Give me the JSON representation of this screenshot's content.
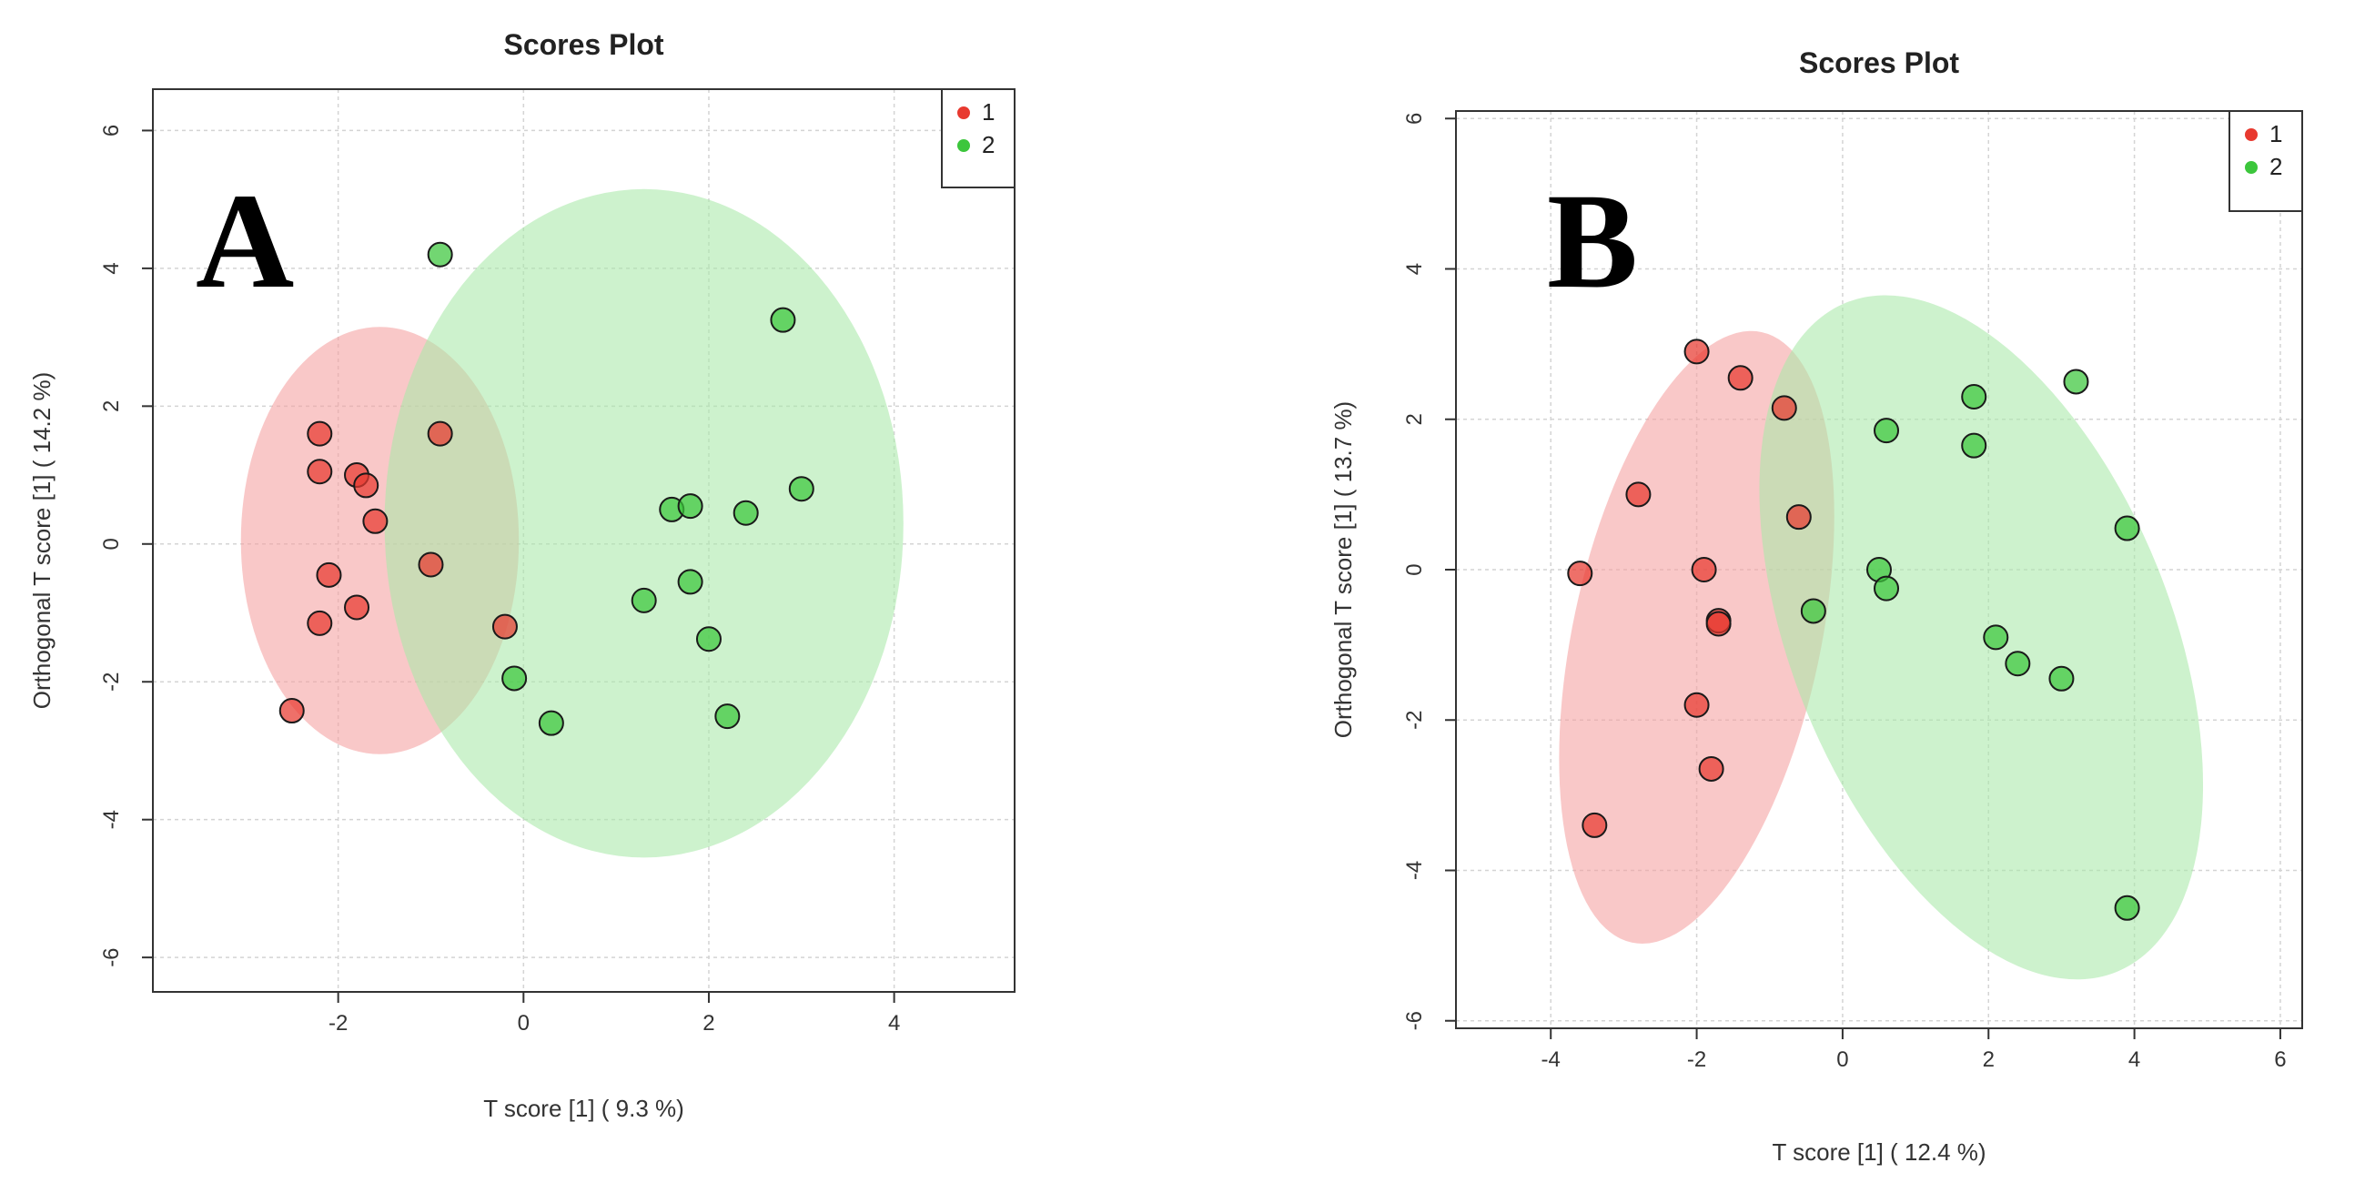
{
  "chart_data": [
    {
      "type": "scatter",
      "panel_label": "A",
      "title": "Scores Plot",
      "xlabel": "T score [1] ( 9.3 %)",
      "ylabel": "Orthogonal T score [1] ( 14.2 %)",
      "xlim": [
        -4.0,
        5.3
      ],
      "ylim": [
        -6.5,
        6.6
      ],
      "xticks": [
        -2,
        0,
        2,
        4
      ],
      "yticks": [
        -6,
        -4,
        -2,
        0,
        2,
        4,
        6
      ],
      "grid": true,
      "legend": {
        "position": "top-right",
        "entries": [
          "1",
          "2"
        ]
      },
      "series": [
        {
          "name": "1",
          "color": "#e8392f",
          "ellipse_color": "#f4a0a0",
          "points": [
            [
              -2.2,
              1.6
            ],
            [
              -2.2,
              1.05
            ],
            [
              -1.8,
              1.0
            ],
            [
              -1.7,
              0.85
            ],
            [
              -1.6,
              0.33
            ],
            [
              -2.1,
              -0.45
            ],
            [
              -2.2,
              -1.15
            ],
            [
              -1.8,
              -0.92
            ],
            [
              -0.9,
              1.6
            ],
            [
              -1.0,
              -0.3
            ],
            [
              -0.2,
              -1.2
            ],
            [
              -2.5,
              -2.42
            ]
          ],
          "ellipse": {
            "cx": -1.55,
            "cy": 0.05,
            "rx": 1.5,
            "ry": 3.1
          }
        },
        {
          "name": "2",
          "color": "#3cc63c",
          "ellipse_color": "#a8e8a8",
          "points": [
            [
              -0.9,
              4.2
            ],
            [
              2.8,
              3.25
            ],
            [
              3.0,
              0.8
            ],
            [
              1.6,
              0.5
            ],
            [
              1.8,
              0.55
            ],
            [
              2.4,
              0.45
            ],
            [
              1.8,
              -0.55
            ],
            [
              1.3,
              -0.82
            ],
            [
              2.0,
              -1.38
            ],
            [
              2.2,
              -2.5
            ],
            [
              -0.1,
              -1.95
            ],
            [
              0.3,
              -2.6
            ]
          ],
          "ellipse": {
            "cx": 1.3,
            "cy": 0.3,
            "rx": 2.8,
            "ry": 4.85
          }
        }
      ]
    },
    {
      "type": "scatter",
      "panel_label": "B",
      "title": "Scores Plot",
      "xlabel": "T score [1] ( 12.4 %)",
      "ylabel": "Orthogonal T score [1] ( 13.7 %)",
      "xlim": [
        -5.3,
        6.3
      ],
      "ylim": [
        -6.1,
        6.1
      ],
      "xticks": [
        -4,
        -2,
        0,
        2,
        4,
        6
      ],
      "yticks": [
        -6,
        -4,
        -2,
        0,
        2,
        4,
        6
      ],
      "grid": true,
      "legend": {
        "position": "top-right",
        "entries": [
          "1",
          "2"
        ]
      },
      "series": [
        {
          "name": "1",
          "color": "#e8392f",
          "ellipse_color": "#f4a0a0",
          "points": [
            [
              -2.0,
              2.9
            ],
            [
              -1.4,
              2.55
            ],
            [
              -0.8,
              2.15
            ],
            [
              -2.8,
              1.0
            ],
            [
              -0.6,
              0.7
            ],
            [
              -3.6,
              -0.05
            ],
            [
              -1.9,
              0.0
            ],
            [
              -1.7,
              -0.68
            ],
            [
              -1.7,
              -0.72
            ],
            [
              -2.0,
              -1.8
            ],
            [
              -1.8,
              -2.65
            ],
            [
              -3.4,
              -3.4
            ]
          ],
          "ellipse": {
            "cx": -2.0,
            "cy": -0.9,
            "rx": 1.7,
            "ry": 4.15,
            "rotation": 12
          }
        },
        {
          "name": "2",
          "color": "#3cc63c",
          "ellipse_color": "#a8e8a8",
          "points": [
            [
              0.6,
              1.85
            ],
            [
              1.8,
              2.3
            ],
            [
              3.2,
              2.5
            ],
            [
              1.8,
              1.65
            ],
            [
              3.9,
              0.55
            ],
            [
              0.5,
              0.0
            ],
            [
              0.6,
              -0.25
            ],
            [
              -0.4,
              -0.55
            ],
            [
              2.1,
              -0.9
            ],
            [
              2.4,
              -1.25
            ],
            [
              3.0,
              -1.45
            ],
            [
              3.9,
              -4.5
            ]
          ],
          "ellipse": {
            "cx": 1.9,
            "cy": -0.9,
            "rx": 2.6,
            "ry": 4.8,
            "rotation": -22
          }
        }
      ]
    }
  ]
}
